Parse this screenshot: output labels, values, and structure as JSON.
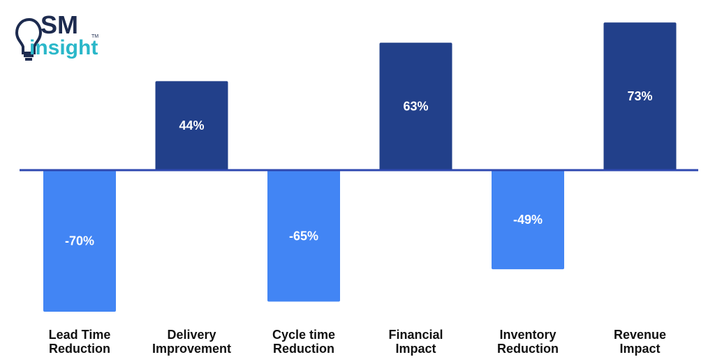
{
  "logo": {
    "line1": "SM",
    "line2": "insight",
    "tm": "TM",
    "icon": "lightbulb-icon"
  },
  "colors": {
    "positive": "#22408a",
    "negative": "#4285f4",
    "axis": "#2f49b0",
    "logo_dark": "#1d2b4f",
    "logo_accent": "#2ab7c9"
  },
  "chart_data": {
    "type": "bar",
    "categories": [
      [
        "Lead Time",
        "Reduction"
      ],
      [
        "Delivery",
        "Improvement"
      ],
      [
        "Cycle time",
        "Reduction"
      ],
      [
        "Financial",
        "Impact"
      ],
      [
        "Inventory",
        "Reduction"
      ],
      [
        "Revenue",
        "Impact"
      ]
    ],
    "values": [
      -70,
      44,
      -65,
      63,
      -49,
      73
    ],
    "value_labels": [
      "-70%",
      "44%",
      "-65%",
      "63%",
      "-49%",
      "73%"
    ],
    "ylim": [
      -70,
      73
    ],
    "grid": false,
    "legend": "none"
  }
}
